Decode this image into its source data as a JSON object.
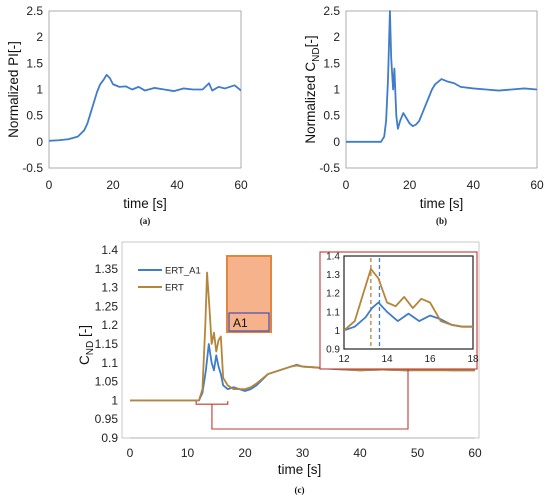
{
  "colors": {
    "blue": "#3f7cc9",
    "brown": "#b5853a",
    "frame": "#bf3a31",
    "orange_fill": "#f6b28b",
    "orange_edge": "#e0873d",
    "purple": "#4a4db3"
  },
  "chart_data": [
    {
      "id": "a",
      "type": "line",
      "ylabel": "Normalized PI[-]",
      "xlabel": "time [s]",
      "caption": "(a)",
      "xlim": [
        0,
        60
      ],
      "ylim": [
        -0.5,
        2.5
      ],
      "xticks": [
        "0",
        "20",
        "40",
        "60"
      ],
      "yticks": [
        "-0.5",
        "0",
        "0.5",
        "1",
        "1.5",
        "2",
        "2.5"
      ],
      "series": [
        {
          "color": "#3f7cc9",
          "x": [
            0,
            3,
            6,
            9,
            11,
            12,
            13,
            14,
            15,
            16,
            17,
            18,
            19,
            20,
            22,
            24,
            26,
            28,
            30,
            33,
            36,
            39,
            42,
            45,
            48,
            50,
            51,
            53,
            55,
            58,
            60
          ],
          "y": [
            0.02,
            0.03,
            0.05,
            0.1,
            0.22,
            0.35,
            0.55,
            0.75,
            0.95,
            1.1,
            1.18,
            1.28,
            1.22,
            1.1,
            1.05,
            1.06,
            1.0,
            1.05,
            0.98,
            1.03,
            1.0,
            0.97,
            1.02,
            1.0,
            1.0,
            1.12,
            0.98,
            1.05,
            1.02,
            1.08,
            0.98
          ]
        }
      ]
    },
    {
      "id": "b",
      "type": "line",
      "ylabel": "Normalized C",
      "ylabel_sub": "ND",
      "ylabel_tail": "[-]",
      "xlabel": "time [s]",
      "caption": "(b)",
      "xlim": [
        0,
        60
      ],
      "ylim": [
        -0.5,
        2.5
      ],
      "xticks": [
        "0",
        "20",
        "40",
        "60"
      ],
      "yticks": [
        "-0.5",
        "0",
        "0.5",
        "1",
        "1.5",
        "2",
        "2.5"
      ],
      "series": [
        {
          "color": "#3f7cc9",
          "x": [
            0,
            4,
            8,
            11,
            12,
            12.6,
            13.2,
            13.8,
            14.2,
            14.8,
            15.2,
            15.8,
            16.3,
            17,
            18,
            19,
            20,
            21,
            22,
            23,
            24,
            25,
            26,
            27,
            28,
            29,
            30,
            32,
            34,
            36,
            40,
            44,
            48,
            52,
            56,
            60
          ],
          "y": [
            0.0,
            0.0,
            0.0,
            0.0,
            0.1,
            0.4,
            1.2,
            2.5,
            1.6,
            1.0,
            1.4,
            0.5,
            0.25,
            0.4,
            0.55,
            0.45,
            0.35,
            0.3,
            0.33,
            0.4,
            0.55,
            0.7,
            0.85,
            1.0,
            1.1,
            1.15,
            1.2,
            1.15,
            1.12,
            1.05,
            1.02,
            1.0,
            0.98,
            1.0,
            1.02,
            1.0
          ]
        }
      ]
    },
    {
      "id": "c",
      "type": "line",
      "ylabel": "C",
      "ylabel_sub": "ND",
      "ylabel_tail": " [-]",
      "xlabel": "time [s]",
      "caption": "(c)",
      "xlim": [
        0,
        60
      ],
      "ylim": [
        0.9,
        1.4
      ],
      "xticks": [
        "0",
        "10",
        "20",
        "30",
        "40",
        "50",
        "60"
      ],
      "yticks": [
        "0.9",
        "0.95",
        "1",
        "1.05",
        "1.1",
        "1.15",
        "1.2",
        "1.25",
        "1.3",
        "1.35",
        "1.4"
      ],
      "legend": [
        "ERT_A1",
        "ERT"
      ],
      "box_label": "A1",
      "series": [
        {
          "name": "ERT_A1",
          "color": "#3f7cc9",
          "x": [
            0,
            5,
            10,
            12,
            12.6,
            13.2,
            13.7,
            14.2,
            14.6,
            15,
            15.4,
            15.8,
            16.2,
            17,
            18,
            19,
            20,
            21,
            22,
            24,
            26,
            28,
            29,
            30,
            32,
            34,
            36,
            40,
            44,
            48,
            52,
            56,
            60
          ],
          "y": [
            1.0,
            1.0,
            1.0,
            1.0,
            1.02,
            1.08,
            1.15,
            1.1,
            1.08,
            1.12,
            1.09,
            1.07,
            1.04,
            1.03,
            1.035,
            1.03,
            1.025,
            1.03,
            1.04,
            1.07,
            1.08,
            1.09,
            1.095,
            1.09,
            1.088,
            1.085,
            1.083,
            1.08,
            1.082,
            1.08,
            1.082,
            1.08,
            1.08
          ]
        },
        {
          "name": "ERT",
          "color": "#b5853a",
          "x": [
            0,
            5,
            10,
            12,
            12.6,
            13.1,
            13.4,
            13.8,
            14.2,
            14.6,
            15,
            15.4,
            15.8,
            16.2,
            17,
            18,
            19,
            20,
            21,
            22,
            24,
            26,
            28,
            29,
            30,
            32,
            34,
            36,
            40,
            44,
            48,
            52,
            56,
            60
          ],
          "y": [
            1.0,
            1.0,
            1.0,
            1.0,
            1.03,
            1.2,
            1.34,
            1.25,
            1.15,
            1.18,
            1.13,
            1.16,
            1.17,
            1.06,
            1.04,
            1.03,
            1.03,
            1.03,
            1.035,
            1.045,
            1.07,
            1.08,
            1.09,
            1.093,
            1.09,
            1.088,
            1.086,
            1.084,
            1.08,
            1.082,
            1.08,
            1.08,
            1.08,
            1.08
          ]
        }
      ]
    },
    {
      "id": "c_inset",
      "type": "line",
      "xlim": [
        12,
        18
      ],
      "ylim": [
        0.9,
        1.4
      ],
      "xticks": [
        "12",
        "14",
        "16",
        "18"
      ],
      "yticks": [
        "0.9",
        "1",
        "1.1",
        "1.2",
        "1.3",
        "1.4"
      ],
      "vlines": [
        {
          "x": 13.25,
          "color": "#b5853a"
        },
        {
          "x": 13.65,
          "color": "#3f7cc9"
        }
      ],
      "series": [
        {
          "name": "ERT_A1",
          "color": "#3f7cc9",
          "x": [
            12,
            12.5,
            13,
            13.3,
            13.6,
            14,
            14.5,
            15,
            15.5,
            16,
            16.5,
            17,
            17.5,
            18
          ],
          "y": [
            1.0,
            1.02,
            1.07,
            1.12,
            1.15,
            1.1,
            1.05,
            1.09,
            1.05,
            1.08,
            1.06,
            1.03,
            1.02,
            1.02
          ]
        },
        {
          "name": "ERT",
          "color": "#b5853a",
          "x": [
            12,
            12.5,
            12.9,
            13.25,
            13.6,
            14,
            14.4,
            14.8,
            15.2,
            15.6,
            16,
            16.5,
            17,
            17.5,
            18
          ],
          "y": [
            1.0,
            1.05,
            1.2,
            1.33,
            1.28,
            1.15,
            1.13,
            1.18,
            1.12,
            1.17,
            1.15,
            1.05,
            1.03,
            1.02,
            1.02
          ]
        }
      ]
    }
  ]
}
